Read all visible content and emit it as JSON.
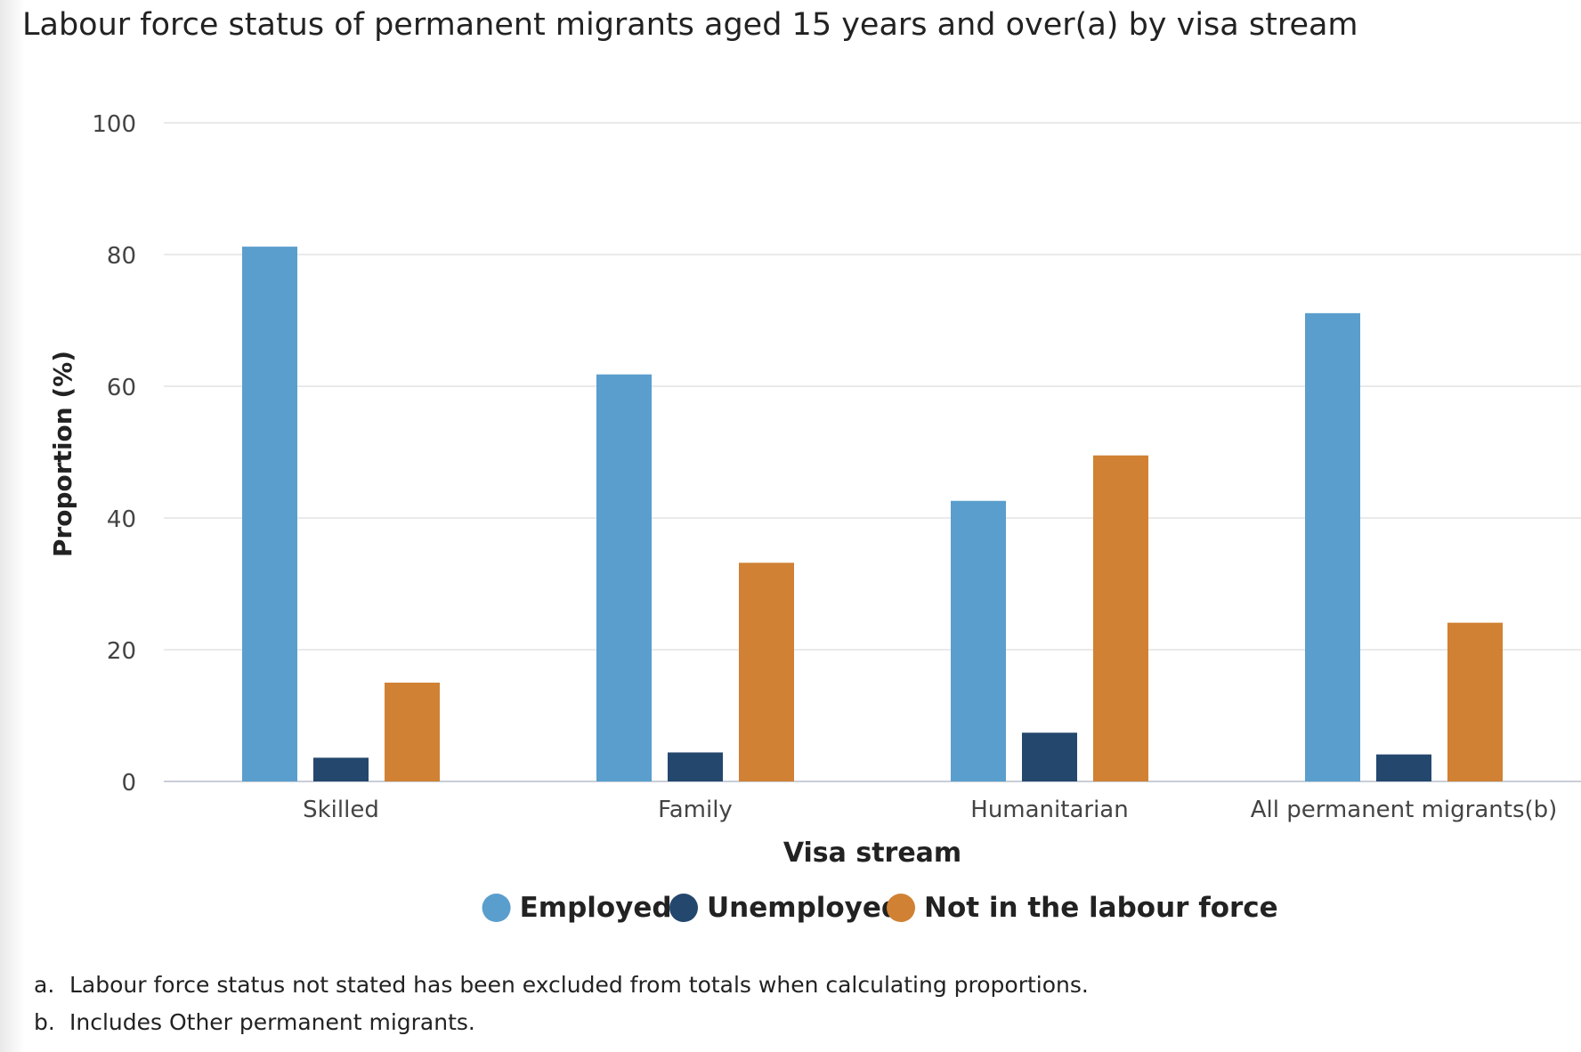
{
  "title": "Labour force status of permanent migrants aged 15 years and over(a) by visa stream",
  "chart_data": {
    "type": "bar",
    "categories": [
      "Skilled",
      "Family",
      "Humanitarian",
      "All permanent migrants(b)"
    ],
    "series": [
      {
        "name": "Employed",
        "color": "#5a9ecd",
        "values": [
          81.2,
          61.8,
          42.6,
          71.1
        ]
      },
      {
        "name": "Unemployed",
        "color": "#24476e",
        "values": [
          3.6,
          4.4,
          7.4,
          4.1
        ]
      },
      {
        "name": "Not in the labour force",
        "color": "#d08133",
        "values": [
          15.0,
          33.2,
          49.5,
          24.1
        ]
      }
    ],
    "xlabel": "Visa stream",
    "ylabel": "Proportion (%)",
    "ylim": [
      0,
      100
    ],
    "yticks": [
      "0",
      "20",
      "40",
      "60",
      "80",
      "100"
    ],
    "grid": true,
    "legend_position": "bottom"
  },
  "notes": [
    {
      "marker": "a.",
      "text": "Labour force status not stated has been excluded from totals when calculating proportions."
    },
    {
      "marker": "b.",
      "text": "Includes Other permanent migrants."
    }
  ]
}
